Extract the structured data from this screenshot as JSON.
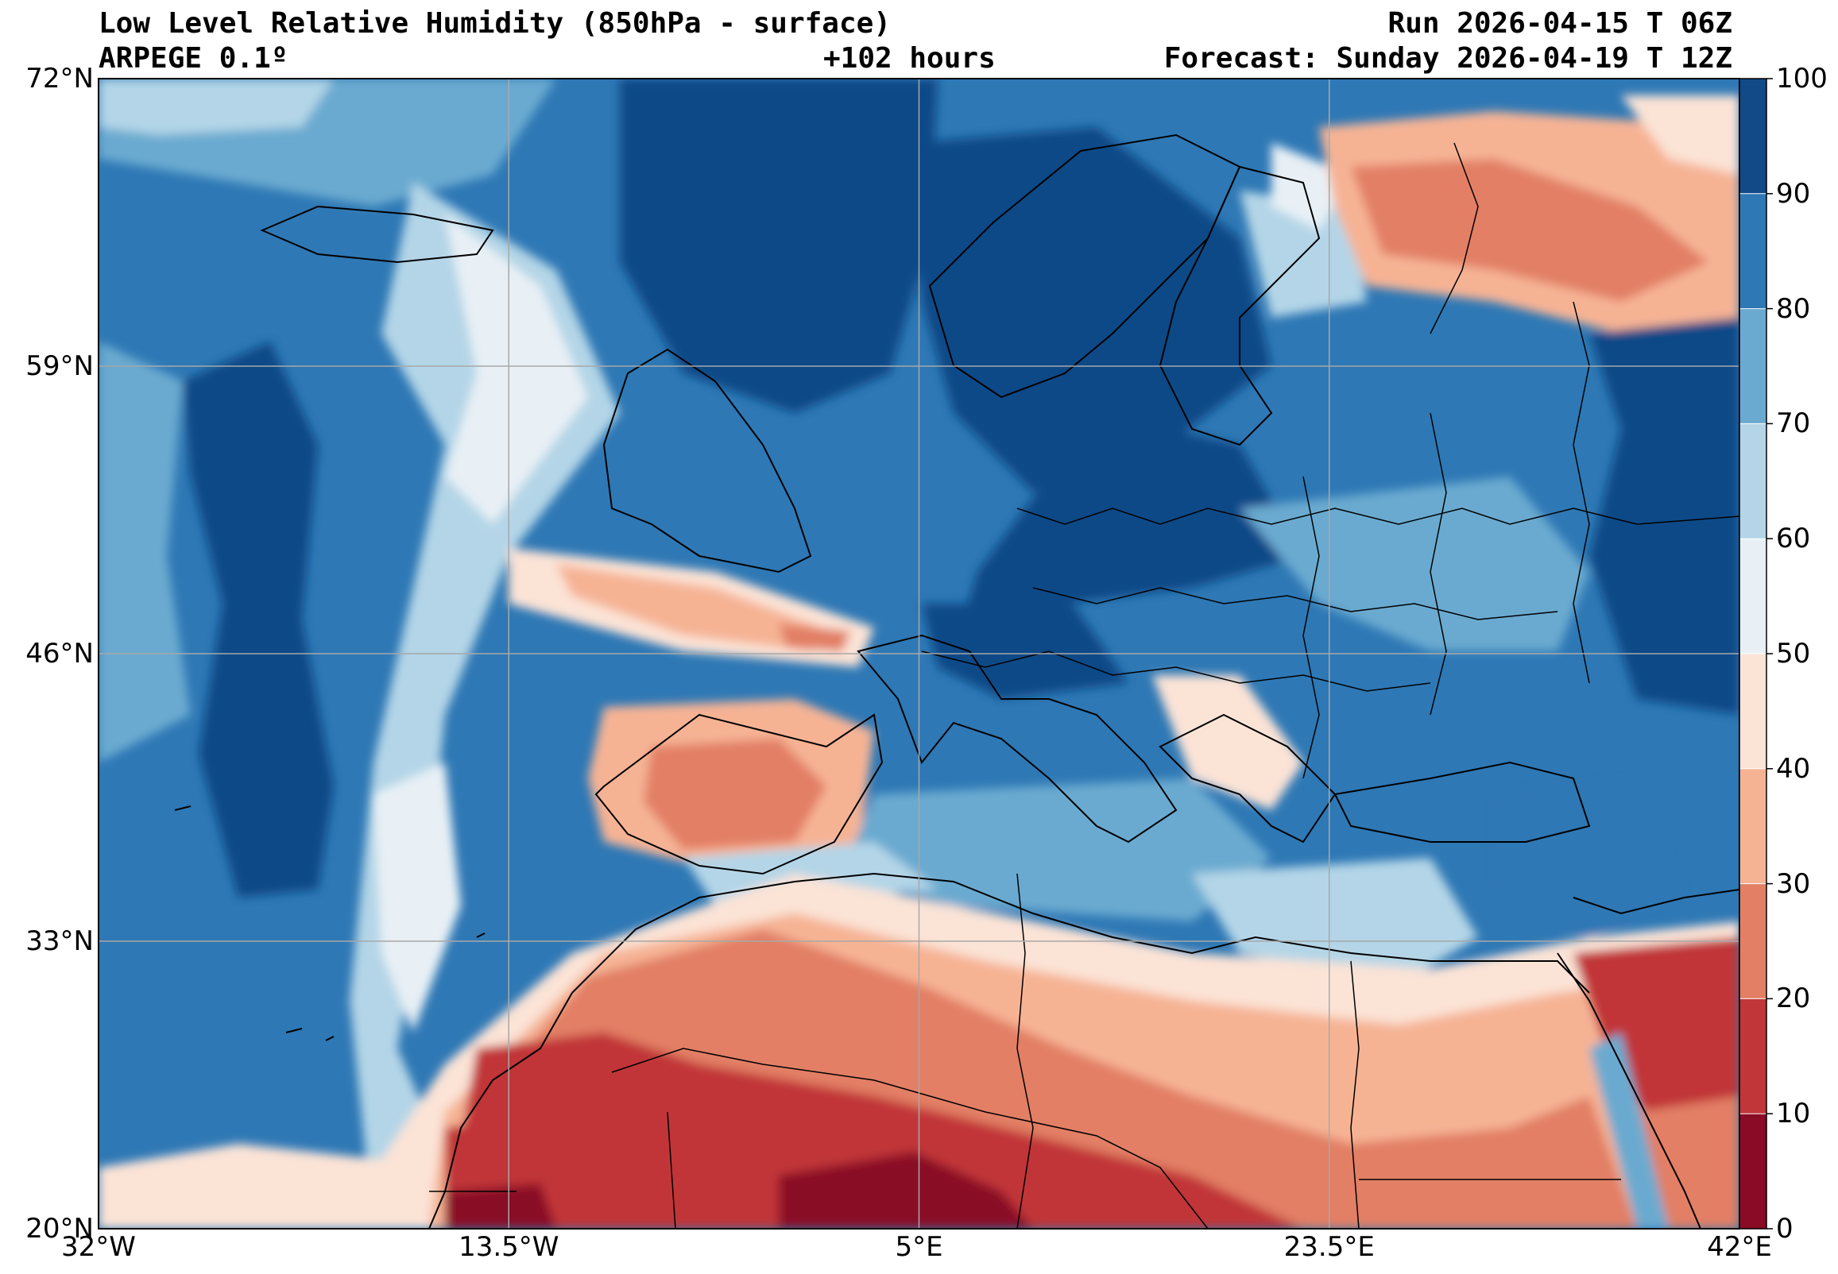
{
  "title": {
    "left_line1": "Low Level Relative Humidity (850hPa - surface)",
    "left_line2": "ARPEGE 0.1º",
    "center_line2": "+102 hours",
    "right_line1": "Run 2026-04-15 T 06Z",
    "right_line2": "Forecast: Sunday 2026-04-19 T 12Z"
  },
  "map": {
    "lat_ticks": [
      {
        "value": 72,
        "label": "72°N"
      },
      {
        "value": 59,
        "label": "59°N"
      },
      {
        "value": 46,
        "label": "46°N"
      },
      {
        "value": 33,
        "label": "33°N"
      },
      {
        "value": 20,
        "label": "20°N"
      }
    ],
    "lon_ticks": [
      {
        "value": -32,
        "label": "32°W"
      },
      {
        "value": -13.5,
        "label": "13.5°W"
      },
      {
        "value": 5,
        "label": "5°E"
      },
      {
        "value": 23.5,
        "label": "23.5°E"
      },
      {
        "value": 42,
        "label": "42°E"
      }
    ],
    "lat_range": [
      20,
      72
    ],
    "lon_range": [
      -32,
      42
    ]
  },
  "colorbar": {
    "levels": [
      0,
      10,
      20,
      30,
      40,
      50,
      60,
      70,
      80,
      90,
      100
    ],
    "labels": [
      "0",
      "10",
      "20",
      "30",
      "40",
      "50",
      "60",
      "70",
      "80",
      "90",
      "100"
    ],
    "colors": [
      "#8a0b25",
      "#c13639",
      "#e27f65",
      "#f6b394",
      "#fbe3d6",
      "#e8f0f5",
      "#b3d5e7",
      "#6aaad0",
      "#2e78b5",
      "#114a87"
    ]
  }
}
